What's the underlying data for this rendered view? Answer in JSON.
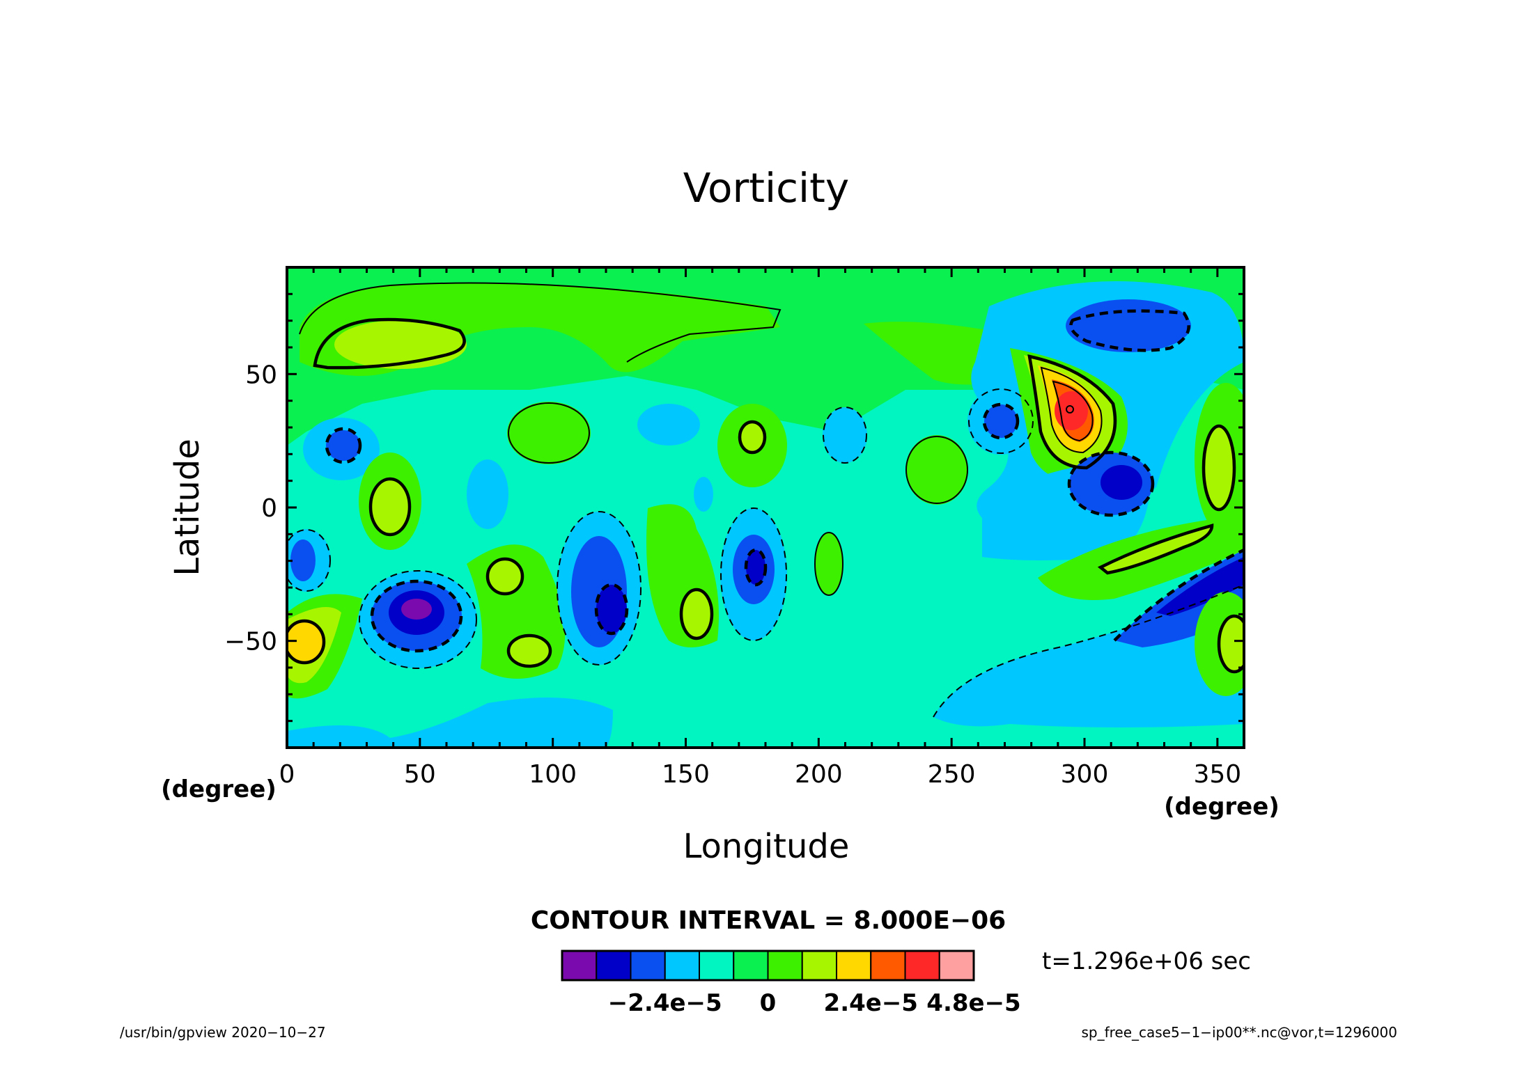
{
  "chart_data": {
    "type": "heatmap",
    "title": "Vorticity",
    "xlabel": "Longitude",
    "ylabel": "Latitude",
    "x_unit": "(degree)",
    "y_unit": "(degree)",
    "xlim": [
      0,
      360
    ],
    "ylim": [
      -90,
      90
    ],
    "xticks": [
      0,
      50,
      100,
      150,
      200,
      250,
      300,
      350
    ],
    "yticks": [
      -50,
      0,
      50
    ],
    "grid": false,
    "contour_interval_label": "CONTOUR INTERVAL = 8.000E−06",
    "contour_interval": 8e-06,
    "colorbar": {
      "colors": [
        "#7a0aad",
        "#0000c8",
        "#0a50f0",
        "#00c8ff",
        "#00f5c0",
        "#0af050",
        "#3cf000",
        "#a8f500",
        "#ffd800",
        "#ff5a00",
        "#ff2828",
        "#ffa0a0"
      ],
      "tick_labels": [
        "−2.4e−5",
        "0",
        "2.4e−5",
        "4.8e−5"
      ],
      "tick_values": [
        -2.4e-05,
        0,
        2.4e-05,
        4.8e-05
      ],
      "min": -4.8e-05,
      "max": 4.8e-05
    },
    "time_label": "t=1.296e+06 sec"
  },
  "footer": {
    "left": "/usr/bin/gpview   2020−10−27",
    "right": "sp_free_case5−1−ip00**.nc@vor,t=1296000"
  }
}
